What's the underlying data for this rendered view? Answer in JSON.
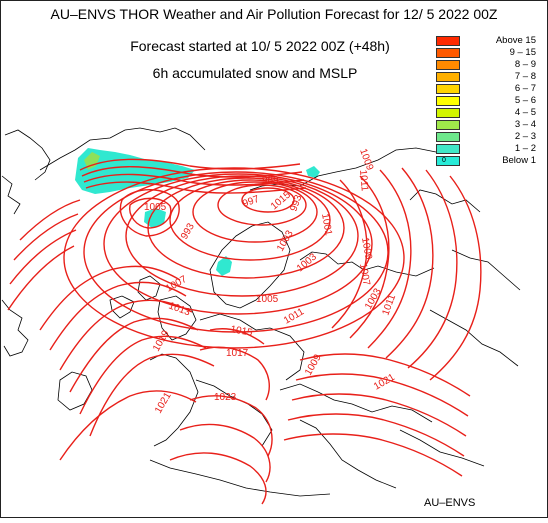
{
  "title": "AU–ENVS THOR Weather and Air Pollution Forecast for 12/ 5 2022  00Z",
  "subtitle": "Forecast started at 10/ 5 2022  00Z (+48h)",
  "field": "6h accumulated snow and MSLP",
  "credit": "AU–ENVS",
  "legend": {
    "items": [
      {
        "label": "Above   15",
        "color": "#ff2a00"
      },
      {
        "label": "9 – 15",
        "color": "#ff5a00"
      },
      {
        "label": "8 – 9",
        "color": "#ff8a00"
      },
      {
        "label": "7 – 8",
        "color": "#ffb000"
      },
      {
        "label": "6 – 7",
        "color": "#ffd400"
      },
      {
        "label": "5 – 6",
        "color": "#ffff00"
      },
      {
        "label": "4 – 5",
        "color": "#d2f500"
      },
      {
        "label": "3 – 4",
        "color": "#a0e84a"
      },
      {
        "label": "2 – 3",
        "color": "#6ee88c"
      },
      {
        "label": "1 – 2",
        "color": "#40e8c8"
      },
      {
        "label": "Below    1",
        "color": "#28ebd8",
        "tag": "0"
      }
    ]
  },
  "isobar_labels": [
    "989",
    "997",
    "993",
    "1001",
    "1009",
    "1011",
    "1005",
    "1009",
    "1007",
    "1003",
    "1003",
    "1007",
    "1005",
    "1013",
    "1011",
    "1015",
    "1003",
    "1017",
    "1019",
    "1021",
    "1023",
    "1021",
    "1009",
    "1011",
    "1015",
    "993"
  ],
  "colors": {
    "isobar": "#e8201a",
    "coast": "#000000",
    "snow_cyan": "#30e8d0",
    "snow_green": "#8ee05a"
  }
}
